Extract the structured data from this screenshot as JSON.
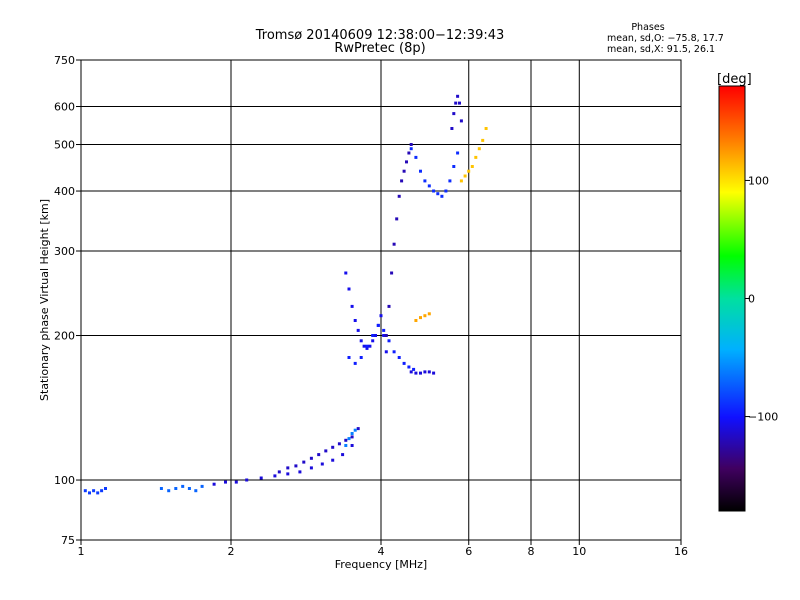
{
  "chart_data": {
    "type": "scatter",
    "title": "Tromsø 20140609 12:38:00−12:39:43",
    "subtitle": "RwPretec (8p)",
    "xlabel": "Frequency [MHz]",
    "ylabel": "Stationary phase Virtual Height [km]",
    "x_scale": "log",
    "y_scale": "log",
    "xlim": [
      1,
      16
    ],
    "ylim": [
      75,
      750
    ],
    "x_ticks": [
      1,
      2,
      4,
      6,
      8,
      10,
      16
    ],
    "x_tick_labels": [
      "1",
      "2",
      "4",
      "6",
      "8",
      "10",
      "16"
    ],
    "y_ticks": [
      75,
      100,
      200,
      300,
      400,
      500,
      600,
      750
    ],
    "y_tick_labels": [
      "75",
      "100",
      "200",
      "300",
      "400",
      "500",
      "600",
      "750"
    ],
    "grid": true,
    "stats": {
      "heading": "Phases",
      "line_o": "mean, sd,O: −75.8, 17.7",
      "line_x": "mean, sd,X:  91.5, 26.1"
    },
    "colorbar": {
      "label": "[deg]",
      "min": -180,
      "max": 180,
      "ticks": [
        100,
        0,
        -100
      ],
      "tick_labels": [
        "100",
        "0",
        "−100"
      ]
    },
    "traces": [
      {
        "name": "",
        "phase": -85,
        "x": [
          1.02,
          1.04,
          1.06,
          1.08,
          1.1,
          1.12
        ],
        "y": [
          95,
          94,
          95,
          94,
          95,
          96
        ]
      },
      {
        "name": "",
        "phase": -70,
        "x": [
          1.45,
          1.5,
          1.55,
          1.6,
          1.65,
          1.7,
          1.75
        ],
        "y": [
          96,
          95,
          96,
          97,
          96,
          95,
          97
        ]
      },
      {
        "name": "",
        "phase": -110,
        "x": [
          1.85,
          1.95,
          2.05,
          2.15,
          2.3,
          2.45,
          2.6,
          2.75,
          2.9,
          3.05,
          3.2,
          3.35,
          3.5
        ],
        "y": [
          98,
          99,
          99,
          100,
          101,
          102,
          103,
          104,
          106,
          108,
          110,
          113,
          118
        ]
      },
      {
        "name": "",
        "phase": -115,
        "x": [
          2.5,
          2.6,
          2.7,
          2.8,
          2.9,
          3.0,
          3.1,
          3.2,
          3.3,
          3.4,
          3.5,
          3.6
        ],
        "y": [
          104,
          106,
          107,
          109,
          111,
          113,
          115,
          117,
          119,
          121,
          123,
          128
        ]
      },
      {
        "name": "",
        "phase": -105,
        "x": [
          3.4,
          3.45,
          3.5,
          3.55,
          3.6,
          3.65,
          3.7,
          3.75,
          3.8,
          3.85,
          3.9,
          3.95,
          4.0,
          4.05,
          4.1
        ],
        "y": [
          270,
          250,
          230,
          215,
          205,
          195,
          190,
          188,
          190,
          195,
          200,
          210,
          220,
          200,
          185
        ]
      },
      {
        "name": "",
        "phase": -95,
        "x": [
          3.45,
          3.55,
          3.65,
          3.75,
          3.85,
          3.95,
          4.05,
          4.15,
          4.25,
          4.35,
          4.45,
          4.55,
          4.65
        ],
        "y": [
          180,
          175,
          180,
          190,
          200,
          210,
          205,
          195,
          185,
          180,
          175,
          172,
          170
        ]
      },
      {
        "name": "",
        "phase": -110,
        "x": [
          4.6,
          4.7,
          4.8,
          4.9,
          5.0,
          5.1
        ],
        "y": [
          168,
          167,
          167,
          168,
          168,
          167
        ]
      },
      {
        "name": "",
        "phase": -120,
        "x": [
          4.1,
          4.15,
          4.2,
          4.25,
          4.3,
          4.35,
          4.4,
          4.45,
          4.5,
          4.55,
          4.6
        ],
        "y": [
          200,
          230,
          270,
          310,
          350,
          390,
          420,
          440,
          460,
          480,
          500
        ]
      },
      {
        "name": "",
        "phase": -90,
        "x": [
          4.6,
          4.7,
          4.8,
          4.9,
          5.0,
          5.1,
          5.2,
          5.3,
          5.4,
          5.5,
          5.6,
          5.7
        ],
        "y": [
          490,
          470,
          440,
          420,
          410,
          400,
          395,
          390,
          400,
          420,
          450,
          480
        ]
      },
      {
        "name": "",
        "phase": -115,
        "x": [
          5.55,
          5.6,
          5.65,
          5.7,
          5.75,
          5.8
        ],
        "y": [
          540,
          580,
          610,
          630,
          610,
          560
        ]
      },
      {
        "name": "",
        "phase": 110,
        "x": [
          5.8,
          5.9,
          6.0,
          6.1,
          6.2,
          6.3,
          6.4,
          6.5
        ],
        "y": [
          420,
          430,
          440,
          450,
          470,
          490,
          510,
          540
        ]
      },
      {
        "name": "",
        "phase": 120,
        "x": [
          4.7,
          4.8,
          4.9,
          5.0
        ],
        "y": [
          215,
          218,
          220,
          222
        ]
      },
      {
        "name": "",
        "phase": -60,
        "x": [
          3.4,
          3.45,
          3.5,
          3.55
        ],
        "y": [
          118,
          122,
          125,
          127
        ]
      }
    ]
  }
}
